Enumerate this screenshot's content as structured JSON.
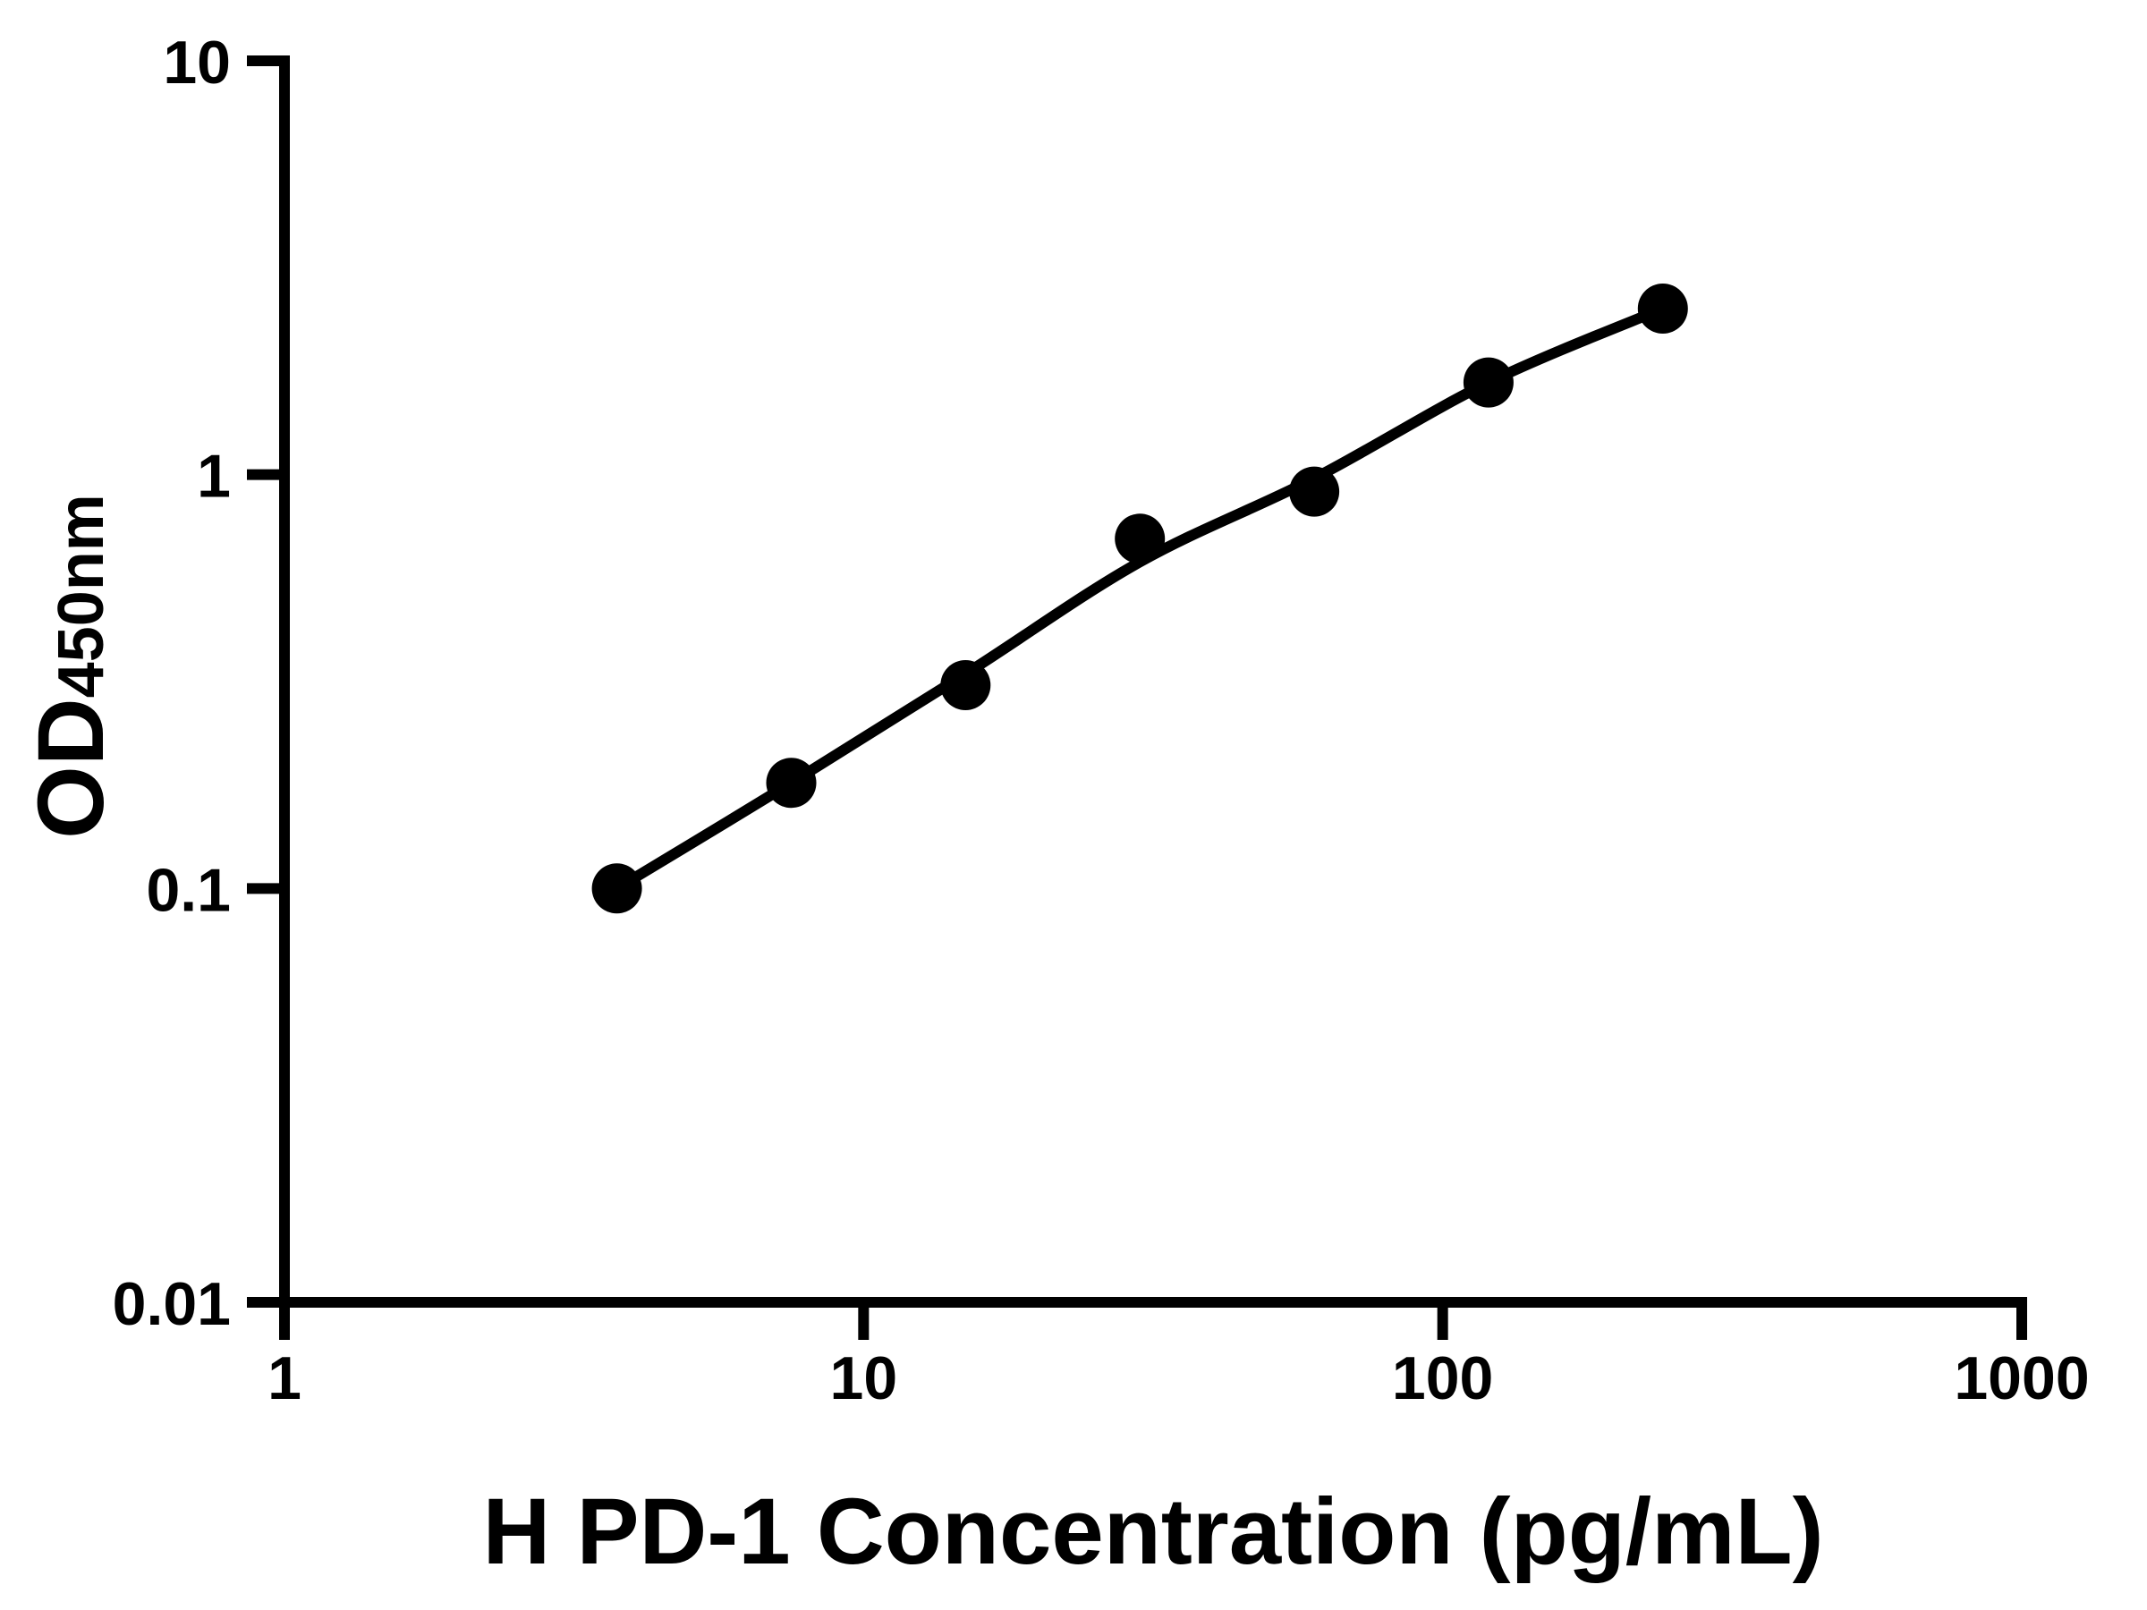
{
  "figure": {
    "background": "#ffffff",
    "description": "ELISA standard curve, log-log scatter plot with fitted line"
  },
  "chart_data": {
    "type": "scatter",
    "title": "",
    "xlabel": "H PD-1 Concentration (pg/mL)",
    "ylabel": "OD450nm",
    "ylabel_main": "OD",
    "ylabel_sub": "450nm",
    "x_scale": "log",
    "y_scale": "log",
    "xlim": [
      1,
      1000
    ],
    "ylim": [
      0.01,
      10
    ],
    "x_ticks": [
      "1",
      "10",
      "100",
      "1000"
    ],
    "y_ticks": [
      "10",
      "1",
      "0.1",
      "0.01"
    ],
    "grid": false,
    "legend": "none",
    "colors": {
      "points": "#000000",
      "line": "#000000",
      "axis": "#000000",
      "background": "#ffffff"
    },
    "series": [
      {
        "name": "standard-points",
        "type": "scatter",
        "marker": "filled-circle",
        "color": "#000000",
        "x": [
          3.75,
          7.5,
          15,
          30,
          60,
          120,
          240
        ],
        "y": [
          0.1,
          0.18,
          0.31,
          0.7,
          0.91,
          1.67,
          2.52
        ]
      },
      {
        "name": "fitted-curve",
        "type": "line",
        "color": "#000000",
        "x": [
          3.75,
          7.5,
          15,
          30,
          60,
          120,
          240
        ],
        "y": [
          0.1,
          0.18,
          0.33,
          0.615,
          0.98,
          1.67,
          2.52
        ]
      }
    ]
  }
}
